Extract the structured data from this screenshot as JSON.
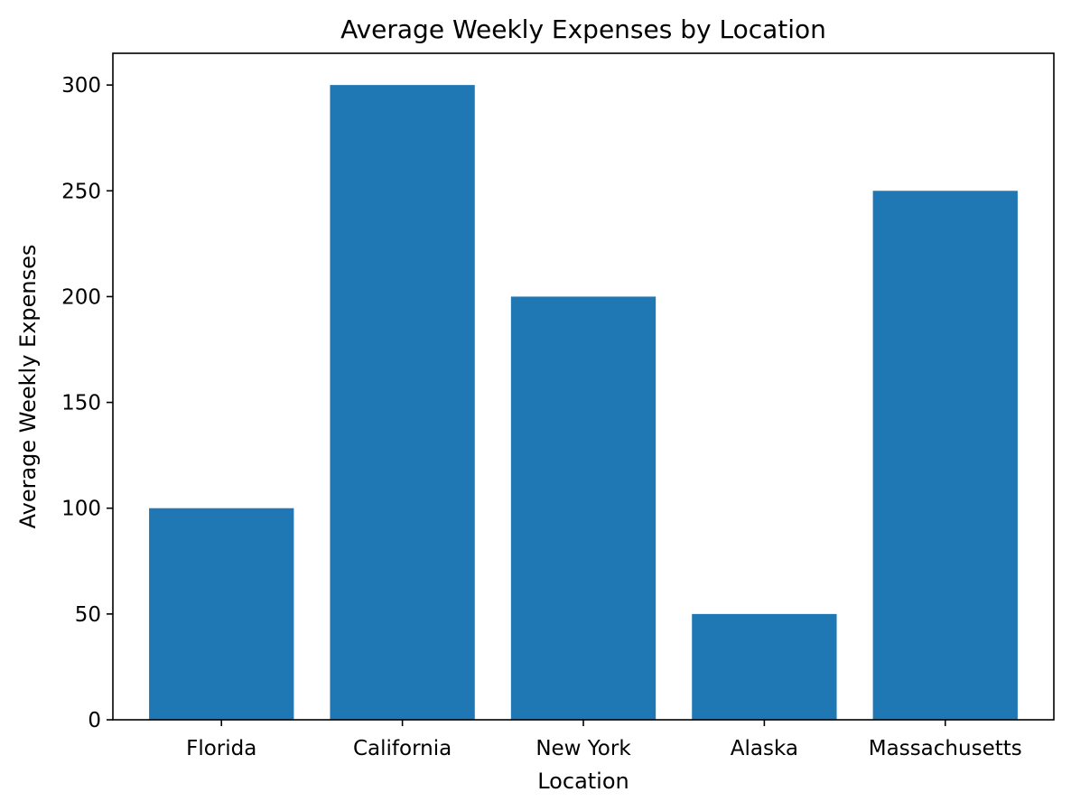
{
  "chart_data": {
    "type": "bar",
    "title": "Average Weekly Expenses by Location",
    "xlabel": "Location",
    "ylabel": "Average Weekly Expenses",
    "categories": [
      "Florida",
      "California",
      "New York",
      "Alaska",
      "Massachusetts"
    ],
    "values": [
      100,
      300,
      200,
      50,
      250
    ],
    "ylim": [
      0,
      315
    ],
    "yticks": [
      0,
      50,
      100,
      150,
      200,
      250,
      300
    ],
    "grid": false,
    "legend": "none",
    "bar_color": "#1f77b4"
  }
}
